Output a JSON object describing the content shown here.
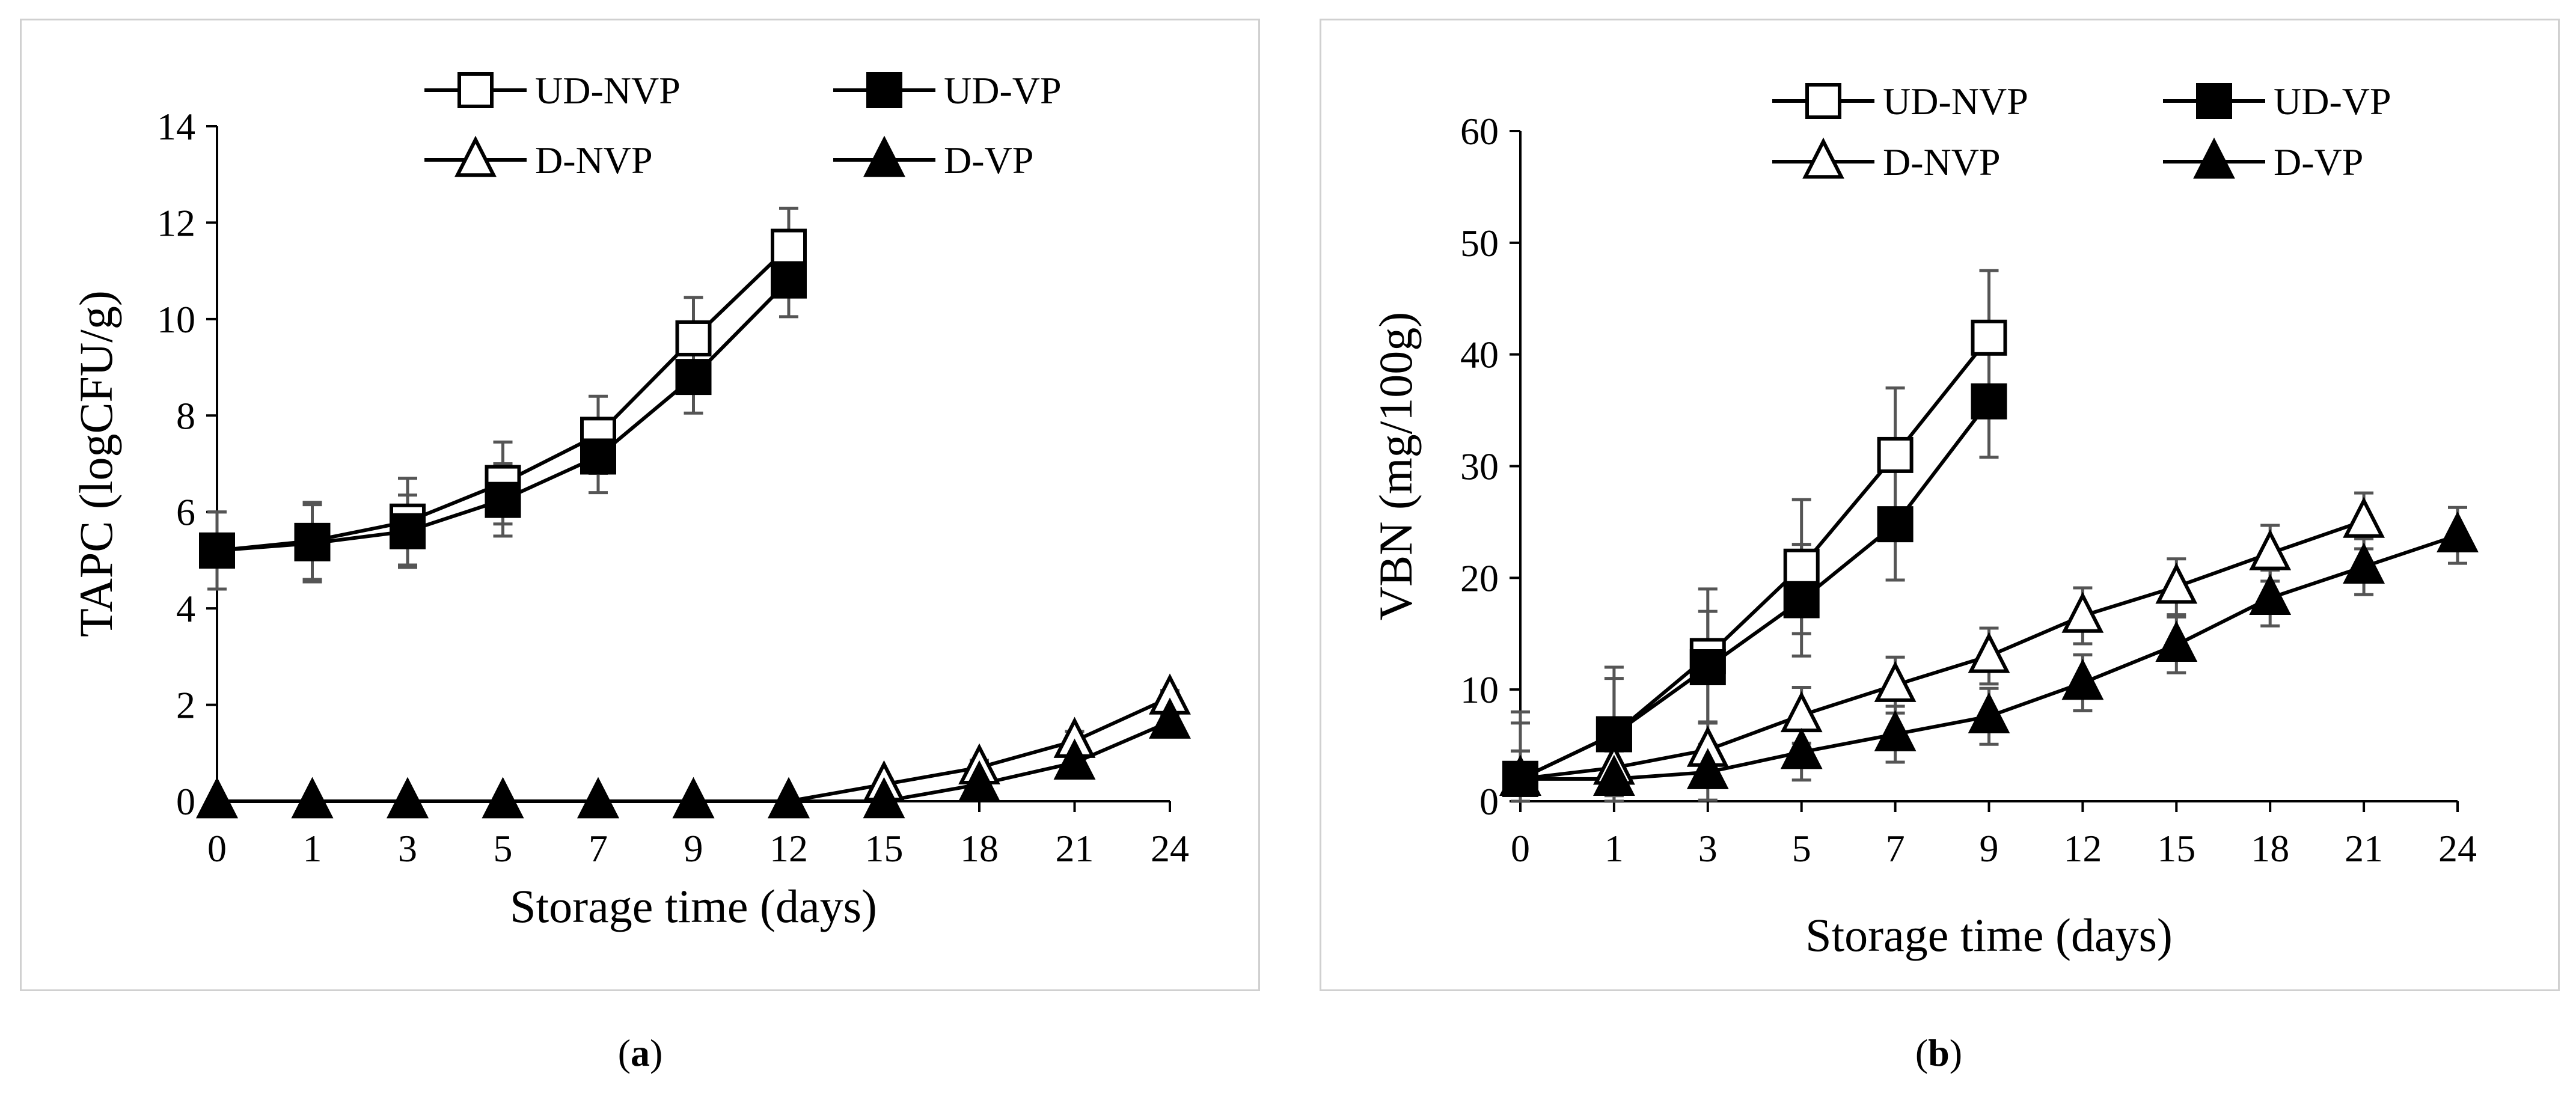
{
  "chart_data": [
    {
      "panel": "a",
      "type": "line",
      "ylabel": "TAPC (logCFU/g)",
      "xlabel": "Storage time (days)",
      "ylim": [
        0,
        14
      ],
      "yticks": [
        0,
        2,
        4,
        6,
        8,
        10,
        12,
        14
      ],
      "categories": [
        "0",
        "1",
        "3",
        "5",
        "7",
        "9",
        "12",
        "15",
        "18",
        "21",
        "24"
      ],
      "legend_position": "top",
      "series": [
        {
          "name": "UD-NVP",
          "marker": "square-open",
          "values": [
            5.2,
            5.4,
            5.8,
            6.6,
            7.6,
            9.6,
            11.5,
            null,
            null,
            null,
            null
          ],
          "errors": [
            0.8,
            0.8,
            0.9,
            0.85,
            0.8,
            0.85,
            0.8,
            null,
            null,
            null,
            null
          ]
        },
        {
          "name": "UD-VP",
          "marker": "square-filled",
          "values": [
            5.2,
            5.35,
            5.6,
            6.25,
            7.15,
            8.8,
            10.8,
            null,
            null,
            null,
            null
          ],
          "errors": [
            0.8,
            0.8,
            0.75,
            0.75,
            0.75,
            0.75,
            0.75,
            null,
            null,
            null,
            null
          ]
        },
        {
          "name": "D-NVP",
          "marker": "triangle-open",
          "values": [
            0,
            0,
            0,
            0,
            0,
            0,
            0,
            0.35,
            0.7,
            1.25,
            2.15
          ],
          "errors": [
            0,
            0,
            0,
            0,
            0,
            0,
            0,
            0.1,
            0.15,
            0.2,
            0.15
          ]
        },
        {
          "name": "D-VP",
          "marker": "triangle-filled",
          "values": [
            0,
            0,
            0,
            0,
            0,
            0,
            0,
            0,
            0.35,
            0.8,
            1.65
          ],
          "errors": [
            0,
            0,
            0,
            0,
            0,
            0,
            0,
            0,
            0.1,
            0.15,
            0.15
          ]
        }
      ]
    },
    {
      "panel": "b",
      "type": "line",
      "ylabel": "VBN (mg/100g)",
      "xlabel": "Storage time (days)",
      "ylim": [
        0,
        60
      ],
      "yticks": [
        0,
        10,
        20,
        30,
        40,
        50,
        60
      ],
      "categories": [
        "0",
        "1",
        "3",
        "5",
        "7",
        "9",
        "12",
        "15",
        "18",
        "21",
        "24"
      ],
      "legend_position": "top",
      "series": [
        {
          "name": "UD-NVP",
          "marker": "square-open",
          "values": [
            2,
            6,
            13,
            21,
            31,
            41.5,
            null,
            null,
            null,
            null,
            null
          ],
          "errors": [
            6,
            6,
            6,
            6,
            6,
            6,
            null,
            null,
            null,
            null,
            null
          ]
        },
        {
          "name": "UD-VP",
          "marker": "square-filled",
          "values": [
            2,
            6,
            12,
            18,
            24.8,
            35.8,
            null,
            null,
            null,
            null,
            null
          ],
          "errors": [
            5,
            5,
            5,
            5,
            5,
            5,
            null,
            null,
            null,
            null,
            null
          ]
        },
        {
          "name": "D-NVP",
          "marker": "triangle-open",
          "values": [
            2,
            3,
            4.6,
            7.7,
            10.4,
            13,
            16.6,
            19.2,
            22.2,
            25.1,
            null
          ],
          "errors": [
            2.5,
            2.5,
            2.5,
            2.5,
            2.5,
            2.5,
            2.5,
            2.5,
            2.5,
            2.5,
            null
          ]
        },
        {
          "name": "D-VP",
          "marker": "triangle-filled",
          "values": [
            2,
            2,
            2.6,
            4.4,
            6,
            7.6,
            10.6,
            14,
            18.2,
            21,
            23.8
          ],
          "errors": [
            2.5,
            2.5,
            2.5,
            2.5,
            2.5,
            2.5,
            2.5,
            2.5,
            2.5,
            2.5,
            2.5
          ]
        }
      ]
    }
  ],
  "captions": {
    "a": {
      "open": "(",
      "letter": "a",
      "close": ")"
    },
    "b": {
      "open": "(",
      "letter": "b",
      "close": ")"
    }
  },
  "colors": {
    "line": "#000000",
    "error_bar": "#555555",
    "frame": "#d0d0d0"
  }
}
